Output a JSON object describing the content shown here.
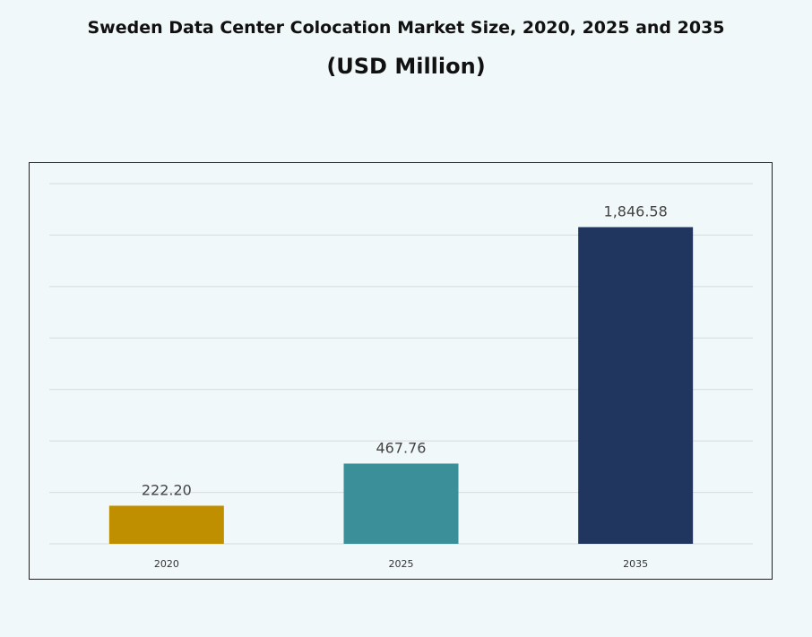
{
  "chart_data": {
    "type": "bar",
    "title": "Sweden Data Center Colocation Market Size, 2020, 2025 and 2035",
    "subtitle": "(USD Million)",
    "categories": [
      "2020",
      "2025",
      "2035"
    ],
    "values": [
      222.2,
      467.76,
      1846.58
    ],
    "data_labels": [
      "222.20",
      "467.76",
      "1,846.58"
    ],
    "colors": [
      "#c08f00",
      "#3a8f98",
      "#20365f"
    ],
    "xlabel": "",
    "ylabel": "",
    "ylim": [
      0,
      2100
    ],
    "y_axis_labels_shown": false,
    "grid": true,
    "legend": "none"
  }
}
